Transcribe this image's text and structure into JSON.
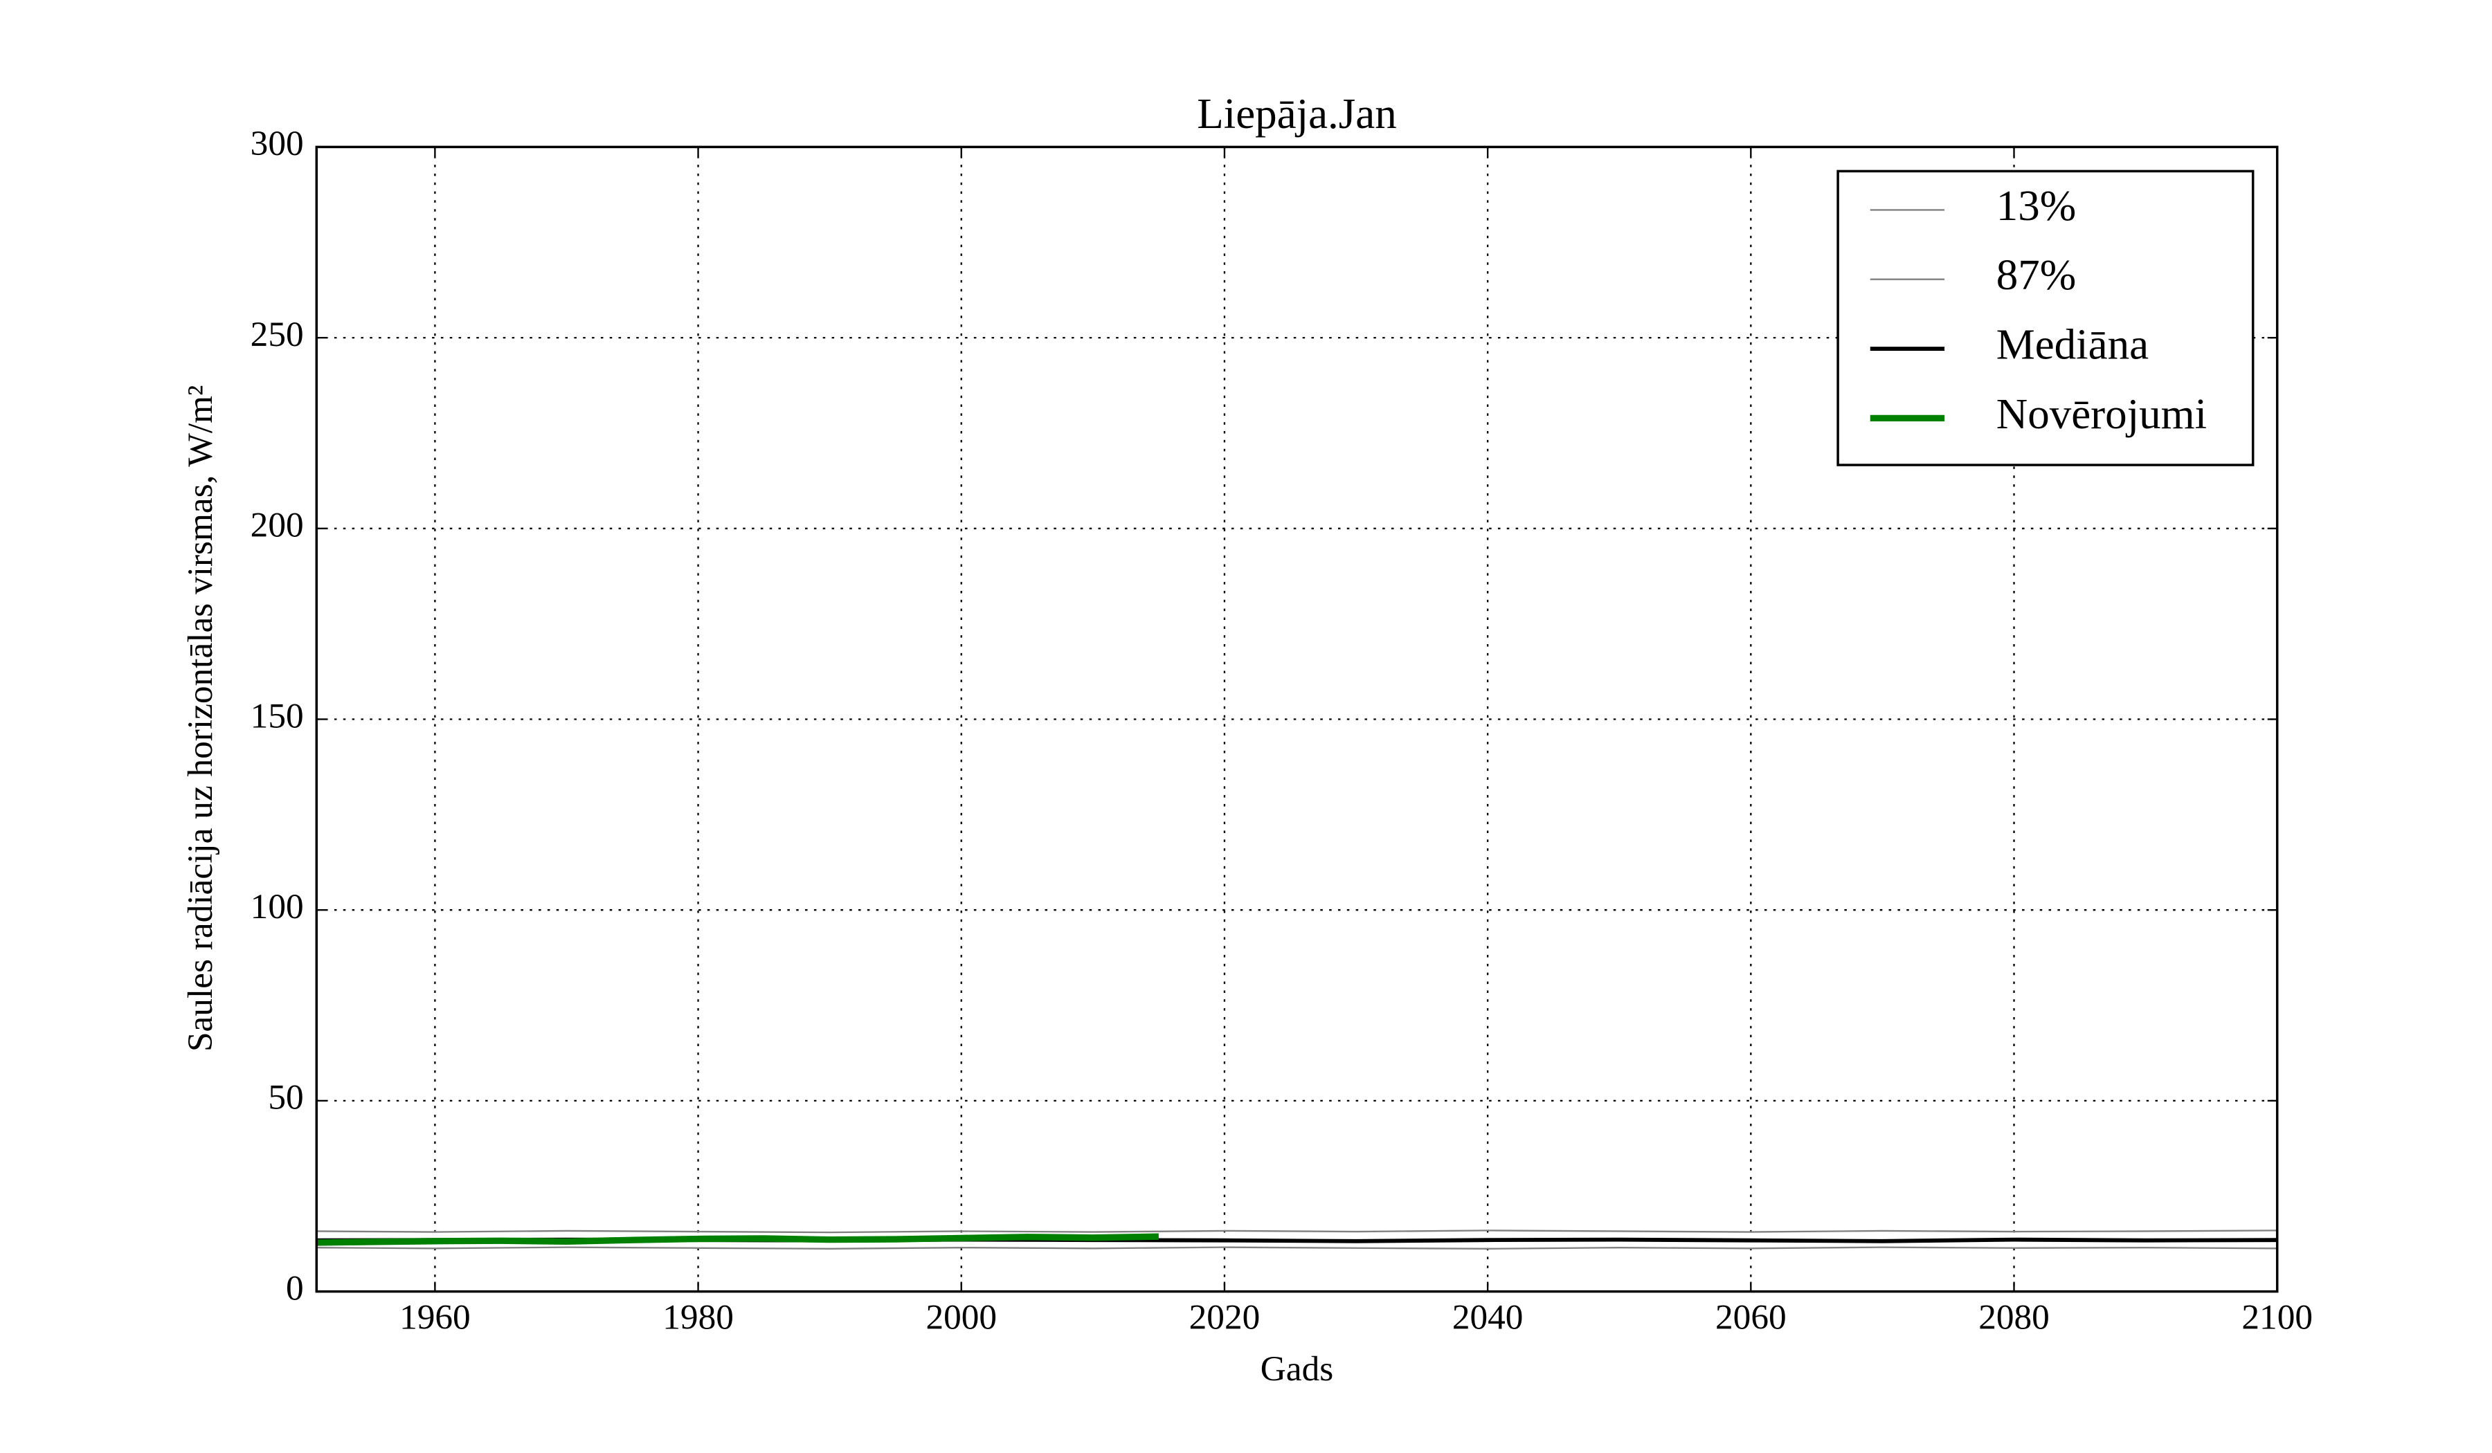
{
  "chart_data": {
    "type": "line",
    "title": "Liepāja.Jan",
    "x_label": "Gads",
    "y_label": "Saules radiācija uz horizontālas virsmas, W/m²",
    "xlim": [
      1951,
      2100
    ],
    "ylim": [
      0,
      300
    ],
    "xticks": [
      1960,
      1980,
      2000,
      2020,
      2040,
      2060,
      2080,
      2100
    ],
    "yticks": [
      0,
      50,
      100,
      150,
      200,
      250,
      300
    ],
    "grid": true,
    "legend": "upper right",
    "series": [
      {
        "name": "13%",
        "color": "#808080",
        "width": 1,
        "x": [
          1951,
          1960,
          1970,
          1980,
          1990,
          2000,
          2010,
          2020,
          2030,
          2040,
          2050,
          2060,
          2070,
          2080,
          2090,
          2100
        ],
        "values": [
          11.5,
          11.3,
          11.6,
          11.4,
          11.2,
          11.5,
          11.3,
          11.6,
          11.4,
          11.2,
          11.5,
          11.3,
          11.6,
          11.4,
          11.5,
          11.3
        ]
      },
      {
        "name": "87%",
        "color": "#808080",
        "width": 1,
        "x": [
          1951,
          1960,
          1970,
          1980,
          1990,
          2000,
          2010,
          2020,
          2030,
          2040,
          2050,
          2060,
          2070,
          2080,
          2090,
          2100
        ],
        "values": [
          15.8,
          15.6,
          15.9,
          15.7,
          15.5,
          15.8,
          15.6,
          15.9,
          15.7,
          16,
          15.8,
          15.6,
          15.9,
          15.7,
          15.8,
          16
        ]
      },
      {
        "name": "Mediāna",
        "color": "#000000",
        "width": 2.5,
        "x": [
          1951,
          1960,
          1970,
          1980,
          1990,
          2000,
          2010,
          2020,
          2030,
          2040,
          2050,
          2060,
          2070,
          2080,
          2090,
          2100
        ],
        "values": [
          13.4,
          13.5,
          13.6,
          13.5,
          13.4,
          13.6,
          13.5,
          13.4,
          13.2,
          13.5,
          13.6,
          13.4,
          13.2,
          13.6,
          13.4,
          13.5
        ]
      },
      {
        "name": "Novērojumi",
        "color": "#008000",
        "width": 4,
        "x": [
          1951,
          1955,
          1960,
          1965,
          1970,
          1975,
          1980,
          1985,
          1990,
          1995,
          2000,
          2005,
          2010,
          2015
        ],
        "values": [
          12.8,
          13.0,
          13.2,
          13.3,
          13.1,
          13.5,
          13.8,
          13.9,
          13.6,
          13.7,
          14.0,
          14.3,
          14.1,
          14.4
        ]
      }
    ]
  }
}
